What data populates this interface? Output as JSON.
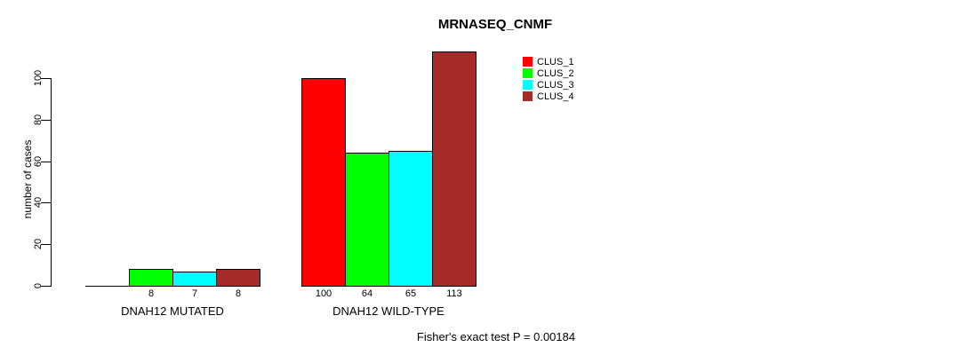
{
  "chart_data": {
    "type": "bar",
    "title": "MRNASEQ_CNMF",
    "ylabel": "number of cases",
    "xlabel": "",
    "categories": [
      "DNAH12 MUTATED",
      "DNAH12 WILD-TYPE"
    ],
    "series": [
      {
        "name": "CLUS_1",
        "color": "#FF0000",
        "values": [
          0,
          100
        ]
      },
      {
        "name": "CLUS_2",
        "color": "#00FF00",
        "values": [
          8,
          64
        ]
      },
      {
        "name": "CLUS_3",
        "color": "#00FFFF",
        "values": [
          7,
          65
        ]
      },
      {
        "name": "CLUS_4",
        "color": "#A52A2A",
        "values": [
          8,
          113
        ]
      }
    ],
    "bar_labels": [
      [
        "",
        "8",
        "7",
        "8"
      ],
      [
        "100",
        "64",
        "65",
        "113"
      ]
    ],
    "yticks": [
      0,
      20,
      40,
      60,
      80,
      100
    ],
    "ylim": [
      0,
      117
    ],
    "grid": false,
    "legend_position": "top-right",
    "legend_entries": [
      "CLUS_1",
      "CLUS_2",
      "CLUS_3",
      "CLUS_4"
    ],
    "annotation": "Fisher's exact test P = 0.00184",
    "axis_color": "#000000",
    "background_color": "#FFFFFF"
  }
}
